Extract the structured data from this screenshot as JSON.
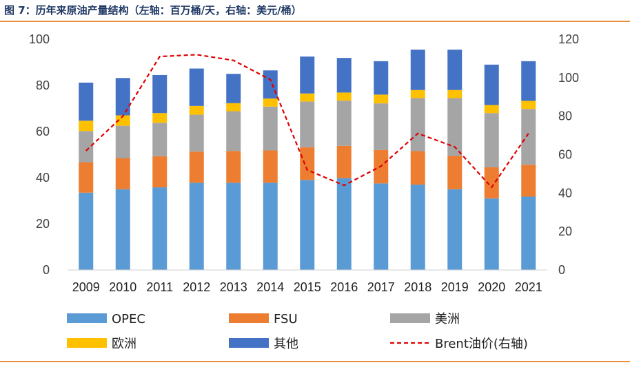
{
  "figure_title": "图 7：历年来原油产量结构（左轴：百万桶/天，右轴：美元/桶）",
  "chart_data": {
    "type": "bar",
    "stacked": true,
    "categories": [
      "2009",
      "2010",
      "2011",
      "2012",
      "2013",
      "2014",
      "2015",
      "2016",
      "2017",
      "2018",
      "2019",
      "2020",
      "2021"
    ],
    "series": [
      {
        "name": "OPEC",
        "color": "#5b9bd5",
        "values": [
          33.5,
          35,
          35.8,
          37.8,
          37.8,
          37.8,
          39,
          39.8,
          37.5,
          37,
          35,
          31,
          31.8
        ]
      },
      {
        "name": "FSU",
        "color": "#ed7d31",
        "values": [
          13.2,
          13.5,
          13.5,
          13.5,
          13.8,
          14,
          14.2,
          14,
          14.5,
          14.5,
          14.5,
          13.5,
          13.8
        ]
      },
      {
        "name": "美洲",
        "color": "#a5a5a5",
        "values": [
          13.5,
          14,
          14.5,
          16,
          17.2,
          19,
          19.8,
          19.6,
          20.2,
          23,
          25,
          23.5,
          24.2
        ]
      },
      {
        "name": "欧洲",
        "color": "#ffc000",
        "values": [
          4.5,
          4.5,
          4.2,
          3.8,
          3.5,
          3.5,
          3.5,
          3.5,
          3.8,
          3.5,
          3.5,
          3.5,
          3.5
        ]
      },
      {
        "name": "其他",
        "color": "#4472c4",
        "values": [
          16.5,
          16.2,
          16.5,
          16.2,
          12.7,
          12.2,
          16,
          15,
          14.5,
          17.5,
          17.5,
          17.5,
          17.2
        ]
      }
    ],
    "line_series": {
      "name": "Brent油价(右轴)",
      "color": "#e00000",
      "axis": "right",
      "values": [
        62,
        80,
        111,
        112,
        109,
        99,
        52,
        44,
        54,
        71,
        64,
        43,
        71
      ]
    },
    "left_axis": {
      "min": 0,
      "max": 100,
      "ticks": [
        "0",
        "20",
        "40",
        "60",
        "80",
        "100"
      ]
    },
    "right_axis": {
      "min": 0,
      "max": 120,
      "ticks": [
        "0",
        "20",
        "40",
        "60",
        "80",
        "100",
        "120"
      ]
    },
    "legend_position": "bottom"
  }
}
